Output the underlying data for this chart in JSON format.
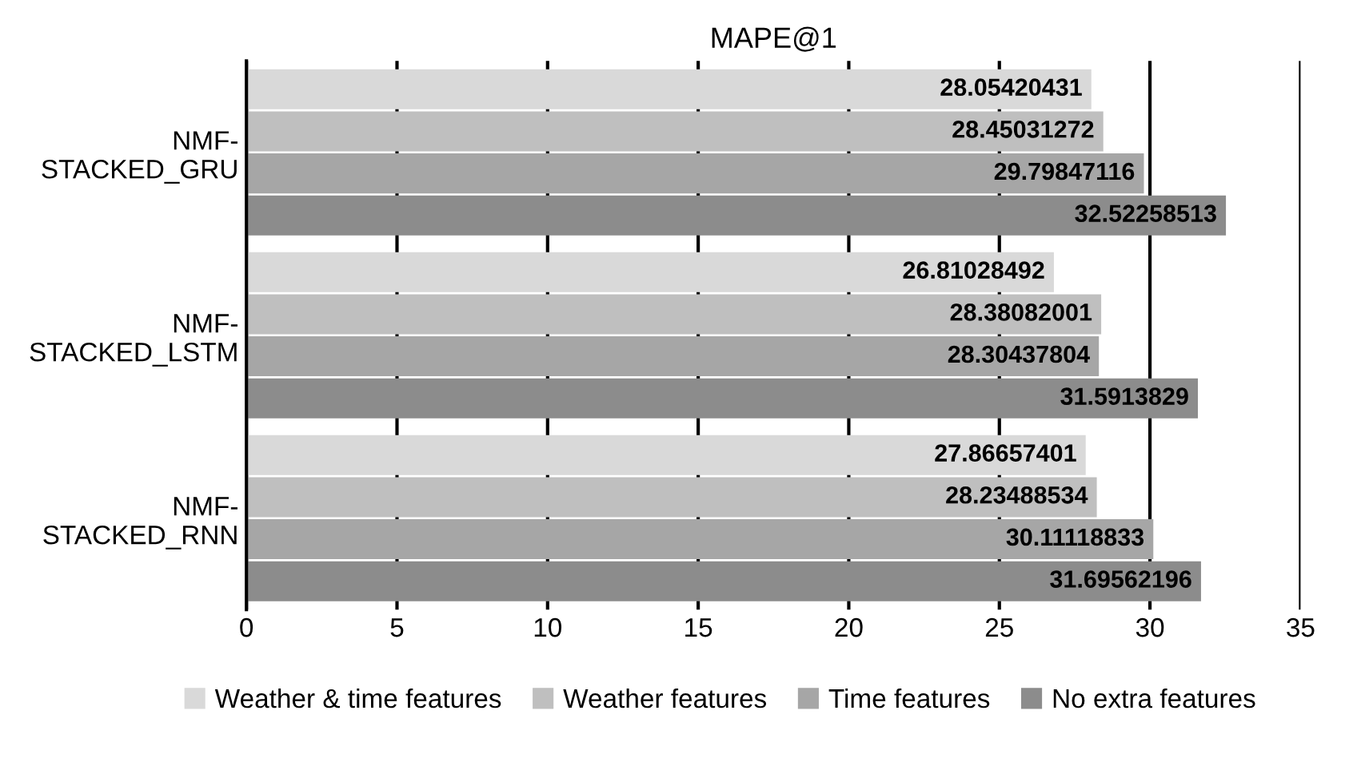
{
  "chart_data": {
    "type": "bar",
    "orientation": "horizontal",
    "title": "MAPE@1",
    "categories": [
      "NMF-STACKED_GRU",
      "NMF-STACKED_LSTM",
      "NMF-STACKED_RNN"
    ],
    "series": [
      {
        "name": "Weather & time features",
        "color": "#d9d9d9",
        "values": [
          28.05420431,
          26.81028492,
          27.86657401
        ]
      },
      {
        "name": "Weather features",
        "color": "#bfbfbf",
        "values": [
          28.45031272,
          28.38082001,
          28.23488534
        ]
      },
      {
        "name": "Time features",
        "color": "#a6a6a6",
        "values": [
          29.79847116,
          28.30437804,
          30.11118833
        ]
      },
      {
        "name": "No extra features",
        "color": "#8c8c8c",
        "values": [
          32.52258513,
          31.5913829,
          31.69562196
        ]
      }
    ],
    "xlim": [
      0,
      35
    ],
    "xticks": [
      0,
      5,
      10,
      15,
      20,
      25,
      30,
      35
    ],
    "grid": "x",
    "legend": "bottom",
    "data_labels": true
  }
}
